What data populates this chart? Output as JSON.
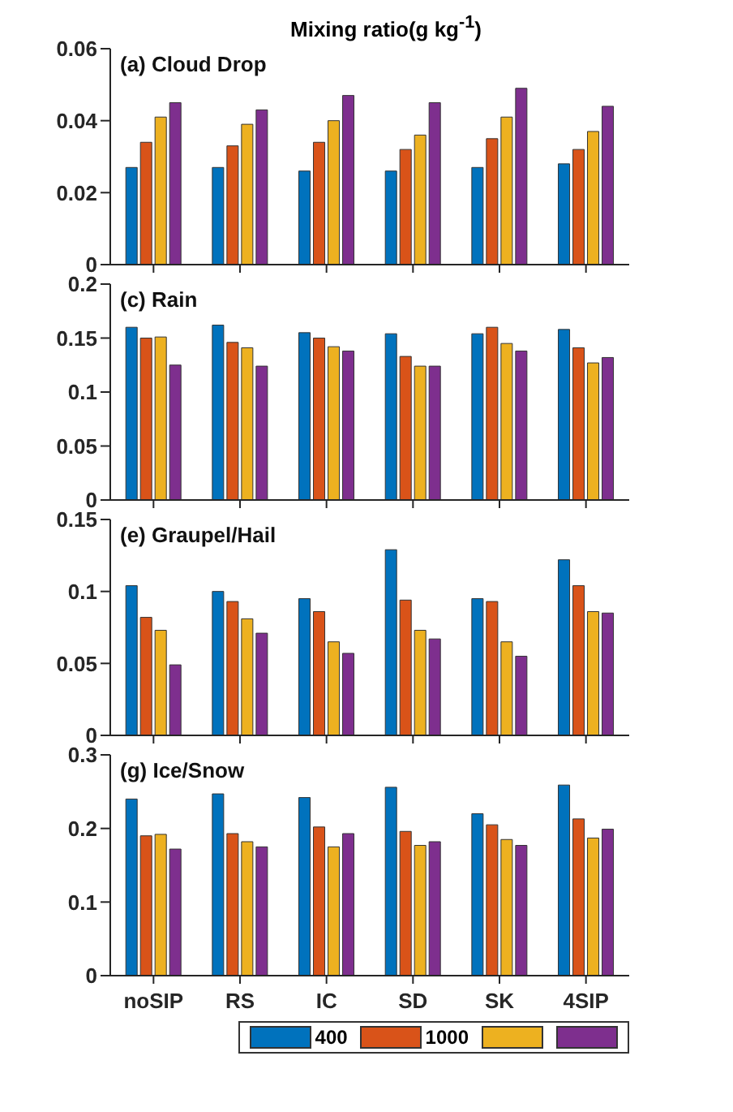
{
  "chart_data": [
    {
      "type": "bar",
      "title": "Mixing ratio(g kg$^{-1}$)",
      "annotations": [
        "(a) Cloud Drop"
      ],
      "categories": [
        null,
        null,
        null,
        null,
        null,
        null
      ],
      "ylim": [
        0,
        0.06
      ],
      "yticks": [
        0,
        0.02,
        0.04,
        0.06
      ],
      "tick_labels": "y",
      "series": [
        {
          "color": "#0072bd",
          "values": [
            0.027,
            0.027,
            0.026,
            0.026,
            0.027,
            0.028
          ]
        },
        {
          "color": "#d95319",
          "values": [
            0.034,
            0.033,
            0.034,
            0.032,
            0.035,
            0.032
          ]
        },
        {
          "color": "#edb120",
          "values": [
            0.041,
            0.039,
            0.04,
            0.036,
            0.041,
            0.037
          ]
        },
        {
          "color": "#7e2f8e",
          "values": [
            0.045,
            0.043,
            0.047,
            0.045,
            0.049,
            0.044
          ]
        }
      ]
    },
    {
      "type": "bar",
      "annotations": [
        "(c) Rain"
      ],
      "categories": [
        null,
        null,
        null,
        null,
        null,
        null
      ],
      "ylim": [
        0,
        0.2
      ],
      "yticks": [
        0,
        0.05,
        0.1,
        0.15,
        0.2
      ],
      "tick_labels": "y",
      "series": [
        {
          "color": "#0072bd",
          "values": [
            0.16,
            0.162,
            0.155,
            0.154,
            0.154,
            0.158
          ]
        },
        {
          "color": "#d95319",
          "values": [
            0.15,
            0.146,
            0.15,
            0.133,
            0.16,
            0.141
          ]
        },
        {
          "color": "#edb120",
          "values": [
            0.151,
            0.141,
            0.142,
            0.124,
            0.145,
            0.127
          ]
        },
        {
          "color": "#7e2f8e",
          "values": [
            0.125,
            0.124,
            0.138,
            0.124,
            0.138,
            0.132
          ]
        }
      ]
    },
    {
      "type": "bar",
      "annotations": [
        "(e) Graupel/Hail"
      ],
      "categories": [
        null,
        null,
        null,
        null,
        null,
        null
      ],
      "ylim": [
        0,
        0.15
      ],
      "yticks": [
        0,
        0.05,
        0.1,
        0.15
      ],
      "tick_labels": "y",
      "series": [
        {
          "color": "#0072bd",
          "values": [
            0.104,
            0.1,
            0.095,
            0.129,
            0.095,
            0.122
          ]
        },
        {
          "color": "#d95319",
          "values": [
            0.082,
            0.093,
            0.086,
            0.094,
            0.093,
            0.104
          ]
        },
        {
          "color": "#edb120",
          "values": [
            0.073,
            0.081,
            0.065,
            0.073,
            0.065,
            0.086
          ]
        },
        {
          "color": "#7e2f8e",
          "values": [
            0.049,
            0.071,
            0.057,
            0.067,
            0.055,
            0.085
          ]
        }
      ]
    },
    {
      "type": "bar",
      "annotations": [
        "(g) Ice/Snow"
      ],
      "categories": [
        "noSIP",
        "RS",
        "IC",
        "SD",
        "SK",
        "4SIP"
      ],
      "ylim": [
        0,
        0.3
      ],
      "yticks": [
        0,
        0.1,
        0.2,
        0.3
      ],
      "legend": "bottom",
      "series": [
        {
          "name": "400",
          "color": "#0072bd",
          "values": [
            0.24,
            0.247,
            0.242,
            0.256,
            0.22,
            0.259
          ]
        },
        {
          "name": "1000",
          "color": "#d95319",
          "values": [
            0.19,
            0.193,
            0.202,
            0.196,
            0.205,
            0.213
          ]
        },
        {
          "color": "#edb120",
          "values": [
            0.192,
            0.182,
            0.175,
            0.177,
            0.185,
            0.187
          ]
        },
        {
          "color": "#7e2f8e",
          "values": [
            0.172,
            0.175,
            0.193,
            0.182,
            0.177,
            0.199
          ]
        }
      ]
    }
  ]
}
